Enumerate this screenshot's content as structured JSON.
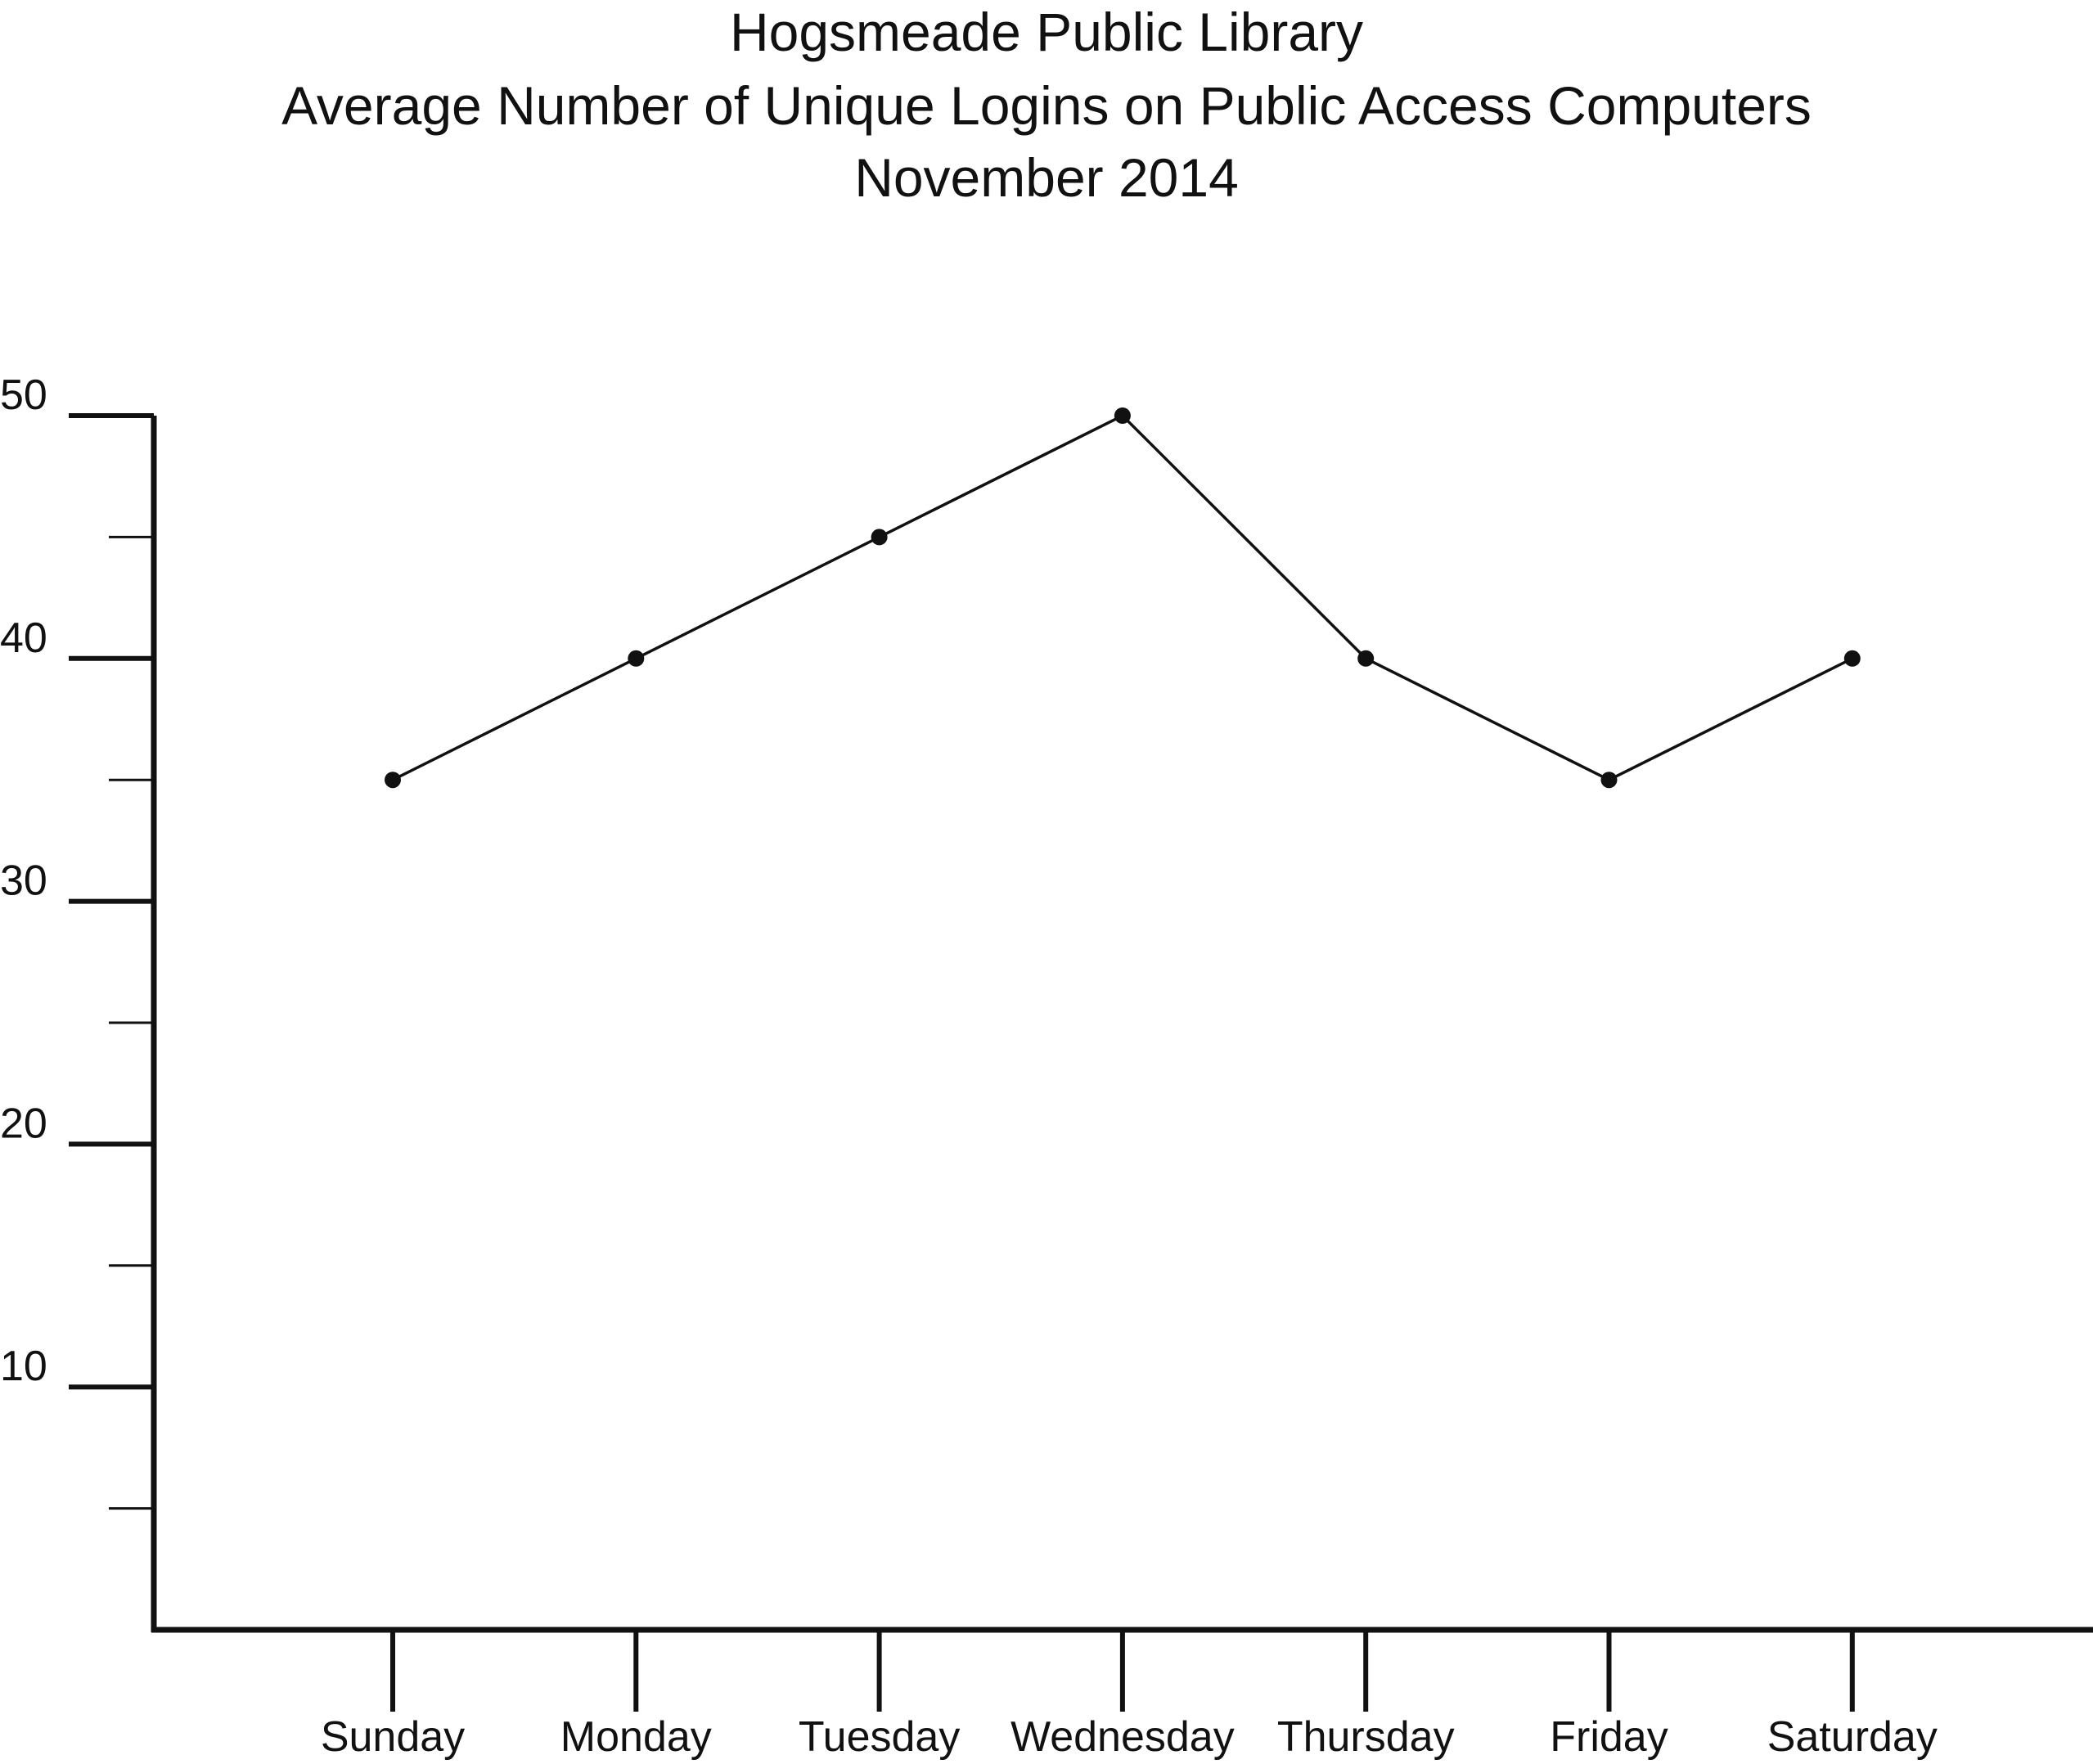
{
  "chart_data": {
    "type": "line",
    "title_lines": [
      "Hogsmeade Public Library",
      "Average Number of Unique Logins on Public Access Computers",
      "November 2014"
    ],
    "xlabel": "",
    "ylabel": "",
    "categories": [
      "Sunday",
      "Monday",
      "Tuesday",
      "Wednesday",
      "Thursday",
      "Friday",
      "Saturday"
    ],
    "values": [
      35,
      40,
      45,
      50,
      40,
      35,
      40
    ],
    "ylim": [
      0,
      50
    ],
    "y_tick_labels": [
      "10",
      "20",
      "30",
      "40",
      "50"
    ],
    "y_tick_values": [
      10,
      20,
      30,
      40,
      50
    ],
    "y_minor_tick_values": [
      5,
      15,
      25,
      35,
      45
    ],
    "grid": false,
    "legend": "none",
    "colors": {
      "axis": "#111111",
      "line": "#111111",
      "marker": "#111111",
      "text": "#111111"
    }
  }
}
